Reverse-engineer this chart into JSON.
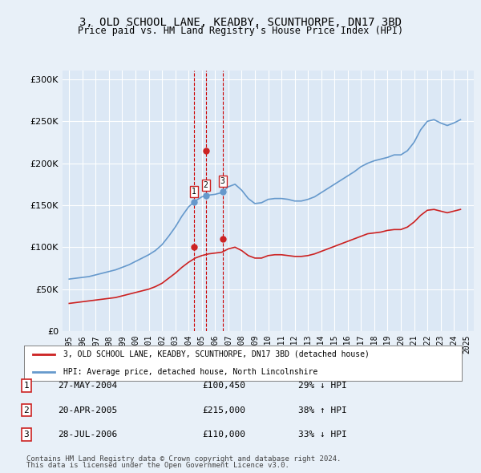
{
  "title": "3, OLD SCHOOL LANE, KEADBY, SCUNTHORPE, DN17 3BD",
  "subtitle": "Price paid vs. HM Land Registry's House Price Index (HPI)",
  "background_color": "#e8f0f8",
  "plot_bg_color": "#dce8f5",
  "legend_line1": "3, OLD SCHOOL LANE, KEADBY, SCUNTHORPE, DN17 3BD (detached house)",
  "legend_line2": "HPI: Average price, detached house, North Lincolnshire",
  "footnote1": "Contains HM Land Registry data © Crown copyright and database right 2024.",
  "footnote2": "This data is licensed under the Open Government Licence v3.0.",
  "transactions": [
    {
      "num": 1,
      "date": "27-MAY-2004",
      "price": 100450,
      "pct": "29%",
      "dir": "↓",
      "x": 2004.4
    },
    {
      "num": 2,
      "date": "20-APR-2005",
      "price": 215000,
      "pct": "38%",
      "dir": "↑",
      "x": 2005.3
    },
    {
      "num": 3,
      "date": "28-JUL-2006",
      "price": 110000,
      "pct": "33%",
      "dir": "↓",
      "x": 2006.57
    }
  ],
  "hpi_color": "#6699cc",
  "price_color": "#cc2222",
  "vline_color": "#cc0000",
  "marker_color_hpi": "#4477bb",
  "marker_color_price": "#cc2222",
  "ylim": [
    0,
    310000
  ],
  "yticks": [
    0,
    50000,
    100000,
    150000,
    200000,
    250000,
    300000
  ],
  "xlim": [
    1994.5,
    2025.5
  ],
  "xticks": [
    1995,
    1996,
    1997,
    1998,
    1999,
    2000,
    2001,
    2002,
    2003,
    2004,
    2005,
    2006,
    2007,
    2008,
    2009,
    2010,
    2011,
    2012,
    2013,
    2014,
    2015,
    2016,
    2017,
    2018,
    2019,
    2020,
    2021,
    2022,
    2023,
    2024,
    2025
  ],
  "hpi_data": {
    "years": [
      1995,
      1995.5,
      1996,
      1996.5,
      1997,
      1997.5,
      1998,
      1998.5,
      1999,
      1999.5,
      2000,
      2000.5,
      2001,
      2001.5,
      2002,
      2002.5,
      2003,
      2003.5,
      2004,
      2004.5,
      2005,
      2005.5,
      2006,
      2006.5,
      2007,
      2007.5,
      2008,
      2008.5,
      2009,
      2009.5,
      2010,
      2010.5,
      2011,
      2011.5,
      2012,
      2012.5,
      2013,
      2013.5,
      2014,
      2014.5,
      2015,
      2015.5,
      2016,
      2016.5,
      2017,
      2017.5,
      2018,
      2018.5,
      2019,
      2019.5,
      2020,
      2020.5,
      2021,
      2021.5,
      2022,
      2022.5,
      2023,
      2023.5,
      2024,
      2024.5
    ],
    "values": [
      62000,
      63000,
      64000,
      65000,
      67000,
      69000,
      71000,
      73000,
      76000,
      79000,
      83000,
      87000,
      91000,
      96000,
      103000,
      113000,
      124000,
      137000,
      148000,
      155000,
      160000,
      162000,
      163000,
      165000,
      172000,
      175000,
      168000,
      158000,
      152000,
      153000,
      157000,
      158000,
      158000,
      157000,
      155000,
      155000,
      157000,
      160000,
      165000,
      170000,
      175000,
      180000,
      185000,
      190000,
      196000,
      200000,
      203000,
      205000,
      207000,
      210000,
      210000,
      215000,
      225000,
      240000,
      250000,
      252000,
      248000,
      245000,
      248000,
      252000
    ]
  },
  "price_data": {
    "years": [
      1995,
      1995.5,
      1996,
      1996.5,
      1997,
      1997.5,
      1998,
      1998.5,
      1999,
      1999.5,
      2000,
      2000.5,
      2001,
      2001.5,
      2002,
      2002.5,
      2003,
      2003.5,
      2004,
      2004.5,
      2005,
      2005.5,
      2006,
      2006.5,
      2007,
      2007.5,
      2008,
      2008.5,
      2009,
      2009.5,
      2010,
      2010.5,
      2011,
      2011.5,
      2012,
      2012.5,
      2013,
      2013.5,
      2014,
      2014.5,
      2015,
      2015.5,
      2016,
      2016.5,
      2017,
      2017.5,
      2018,
      2018.5,
      2019,
      2019.5,
      2020,
      2020.5,
      2021,
      2021.5,
      2022,
      2022.5,
      2023,
      2023.5,
      2024,
      2024.5
    ],
    "values": [
      33000,
      34000,
      35000,
      36000,
      37000,
      38000,
      39000,
      40000,
      42000,
      44000,
      46000,
      48000,
      50000,
      53000,
      57000,
      63000,
      69000,
      76000,
      82000,
      87000,
      90000,
      92000,
      93000,
      94000,
      98000,
      100000,
      96000,
      90000,
      87000,
      87000,
      90000,
      91000,
      91000,
      90000,
      89000,
      89000,
      90000,
      92000,
      95000,
      98000,
      101000,
      104000,
      107000,
      110000,
      113000,
      116000,
      117000,
      118000,
      120000,
      121000,
      121000,
      124000,
      130000,
      138000,
      144000,
      145000,
      143000,
      141000,
      143000,
      145000
    ]
  }
}
